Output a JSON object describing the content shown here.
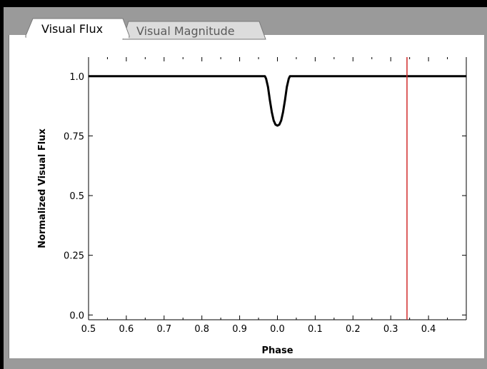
{
  "tabs": [
    {
      "label": "Visual Flux",
      "active": true
    },
    {
      "label": "Visual Magnitude",
      "active": false
    }
  ],
  "colors": {
    "frame": "#000000",
    "background": "#9a9a9a",
    "panel": "#ffffff",
    "curve": "#000000",
    "marker": "#d22a2a"
  },
  "chart_data": {
    "type": "line",
    "xlabel": "Phase",
    "ylabel": "Normalized Visual Flux",
    "x_tick_labels": [
      "0.5",
      "0.6",
      "0.7",
      "0.8",
      "0.9",
      "0.0",
      "0.1",
      "0.2",
      "0.3",
      "0.4"
    ],
    "y_tick_labels": [
      "0.0",
      "0.25",
      "0.5",
      "0.75",
      "1.0"
    ],
    "y_ticks": [
      0.0,
      0.25,
      0.5,
      0.75,
      1.0
    ],
    "xlim": [
      -0.5,
      0.5
    ],
    "ylim": [
      -0.02,
      1.08
    ],
    "grid": false,
    "series": [
      {
        "x": [
          -0.5,
          -0.4,
          -0.3,
          -0.2,
          -0.1,
          -0.04,
          -0.033,
          -0.03,
          -0.025,
          -0.02,
          -0.015,
          -0.01,
          -0.005,
          0.0,
          0.005,
          0.01,
          0.015,
          0.02,
          0.025,
          0.03,
          0.033,
          0.04,
          0.1,
          0.2,
          0.3,
          0.4,
          0.5
        ],
        "y": [
          1.0,
          1.0,
          1.0,
          1.0,
          1.0,
          1.0,
          1.0,
          0.99,
          0.955,
          0.9,
          0.85,
          0.815,
          0.797,
          0.793,
          0.797,
          0.815,
          0.85,
          0.9,
          0.955,
          0.99,
          1.0,
          1.0,
          1.0,
          1.0,
          1.0,
          1.0,
          1.0
        ]
      }
    ],
    "marker_phase": 0.343
  }
}
